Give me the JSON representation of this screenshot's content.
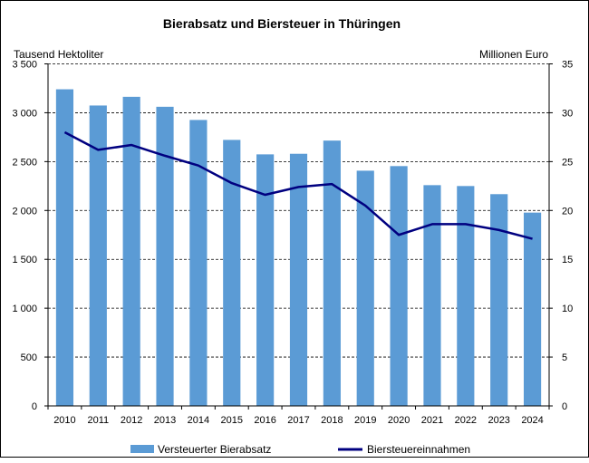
{
  "chart_data": {
    "type": "bar+line",
    "title": "Bierabsatz und Biersteuer in Thüringen",
    "ylabel_left": "Tausend Hektoliter",
    "ylabel_right": "Millionen Euro",
    "ylim_left": [
      0,
      3500
    ],
    "ylim_right": [
      0,
      35
    ],
    "yticks_left": [
      "0",
      "500",
      "1 000",
      "1 500",
      "2 000",
      "2 500",
      "3 000",
      "3 500"
    ],
    "yticks_right": [
      "0",
      "5",
      "10",
      "15",
      "20",
      "25",
      "30",
      "35"
    ],
    "grid": "horizontal dashed",
    "legend": "bottom",
    "categories": [
      "2010",
      "2011",
      "2012",
      "2013",
      "2014",
      "2015",
      "2016",
      "2017",
      "2018",
      "2019",
      "2020",
      "2021",
      "2022",
      "2023",
      "2024"
    ],
    "series": [
      {
        "name": "Versteuerter Bierabsatz",
        "type": "bar",
        "axis": "left",
        "color": "#5b9bd5",
        "values": [
          3240,
          3074,
          3163,
          3061,
          2926,
          2722,
          2574,
          2580,
          2715,
          2407,
          2454,
          2259,
          2250,
          2167,
          1978
        ]
      },
      {
        "name": "Biersteuereinnahmen",
        "type": "line",
        "axis": "right",
        "color": "#000080",
        "values": [
          28.0,
          26.2,
          26.7,
          25.6,
          24.6,
          22.8,
          21.6,
          22.4,
          22.7,
          20.5,
          17.5,
          18.6,
          18.6,
          18.0,
          17.1
        ]
      }
    ]
  }
}
